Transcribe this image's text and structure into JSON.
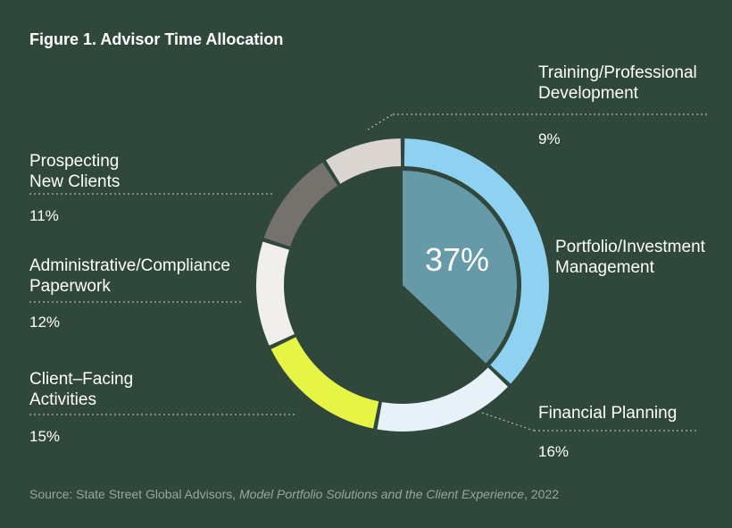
{
  "title": "Figure 1. Advisor Time Allocation",
  "chart_data": {
    "type": "pie",
    "title": "Figure 1. Advisor Time Allocation",
    "highlight_label": "37%",
    "slices": [
      {
        "name": "Portfolio/Investment Management",
        "label_lines": [
          "Portfolio/Investment",
          "Management"
        ],
        "value": 37,
        "pct_label": "",
        "color": "#8fd1f1",
        "inner_color": "#679aa8"
      },
      {
        "name": "Financial Planning",
        "label_lines": [
          "Financial Planning"
        ],
        "value": 16,
        "pct_label": "16%",
        "color": "#e7f1f8"
      },
      {
        "name": "Client-Facing Activities",
        "label_lines": [
          "Client–Facing",
          "Activities"
        ],
        "value": 15,
        "pct_label": "15%",
        "color": "#e6f445"
      },
      {
        "name": "Administrative/Compliance Paperwork",
        "label_lines": [
          "Administrative/Compliance",
          "Paperwork"
        ],
        "value": 12,
        "pct_label": "12%",
        "color": "#f1efed"
      },
      {
        "name": "Prospecting New Clients",
        "label_lines": [
          "Prospecting",
          "New Clients"
        ],
        "value": 11,
        "pct_label": "11%",
        "color": "#75716d"
      },
      {
        "name": "Training/Professional Development",
        "label_lines": [
          "Training/Professional",
          "Development"
        ],
        "value": 9,
        "pct_label": "9%",
        "color": "#dcd6d2"
      }
    ]
  },
  "source": {
    "prefix": "Source: State Street Global Advisors, ",
    "italic": "Model Portfolio Solutions and the Client Experience",
    "suffix": ", 2022"
  }
}
